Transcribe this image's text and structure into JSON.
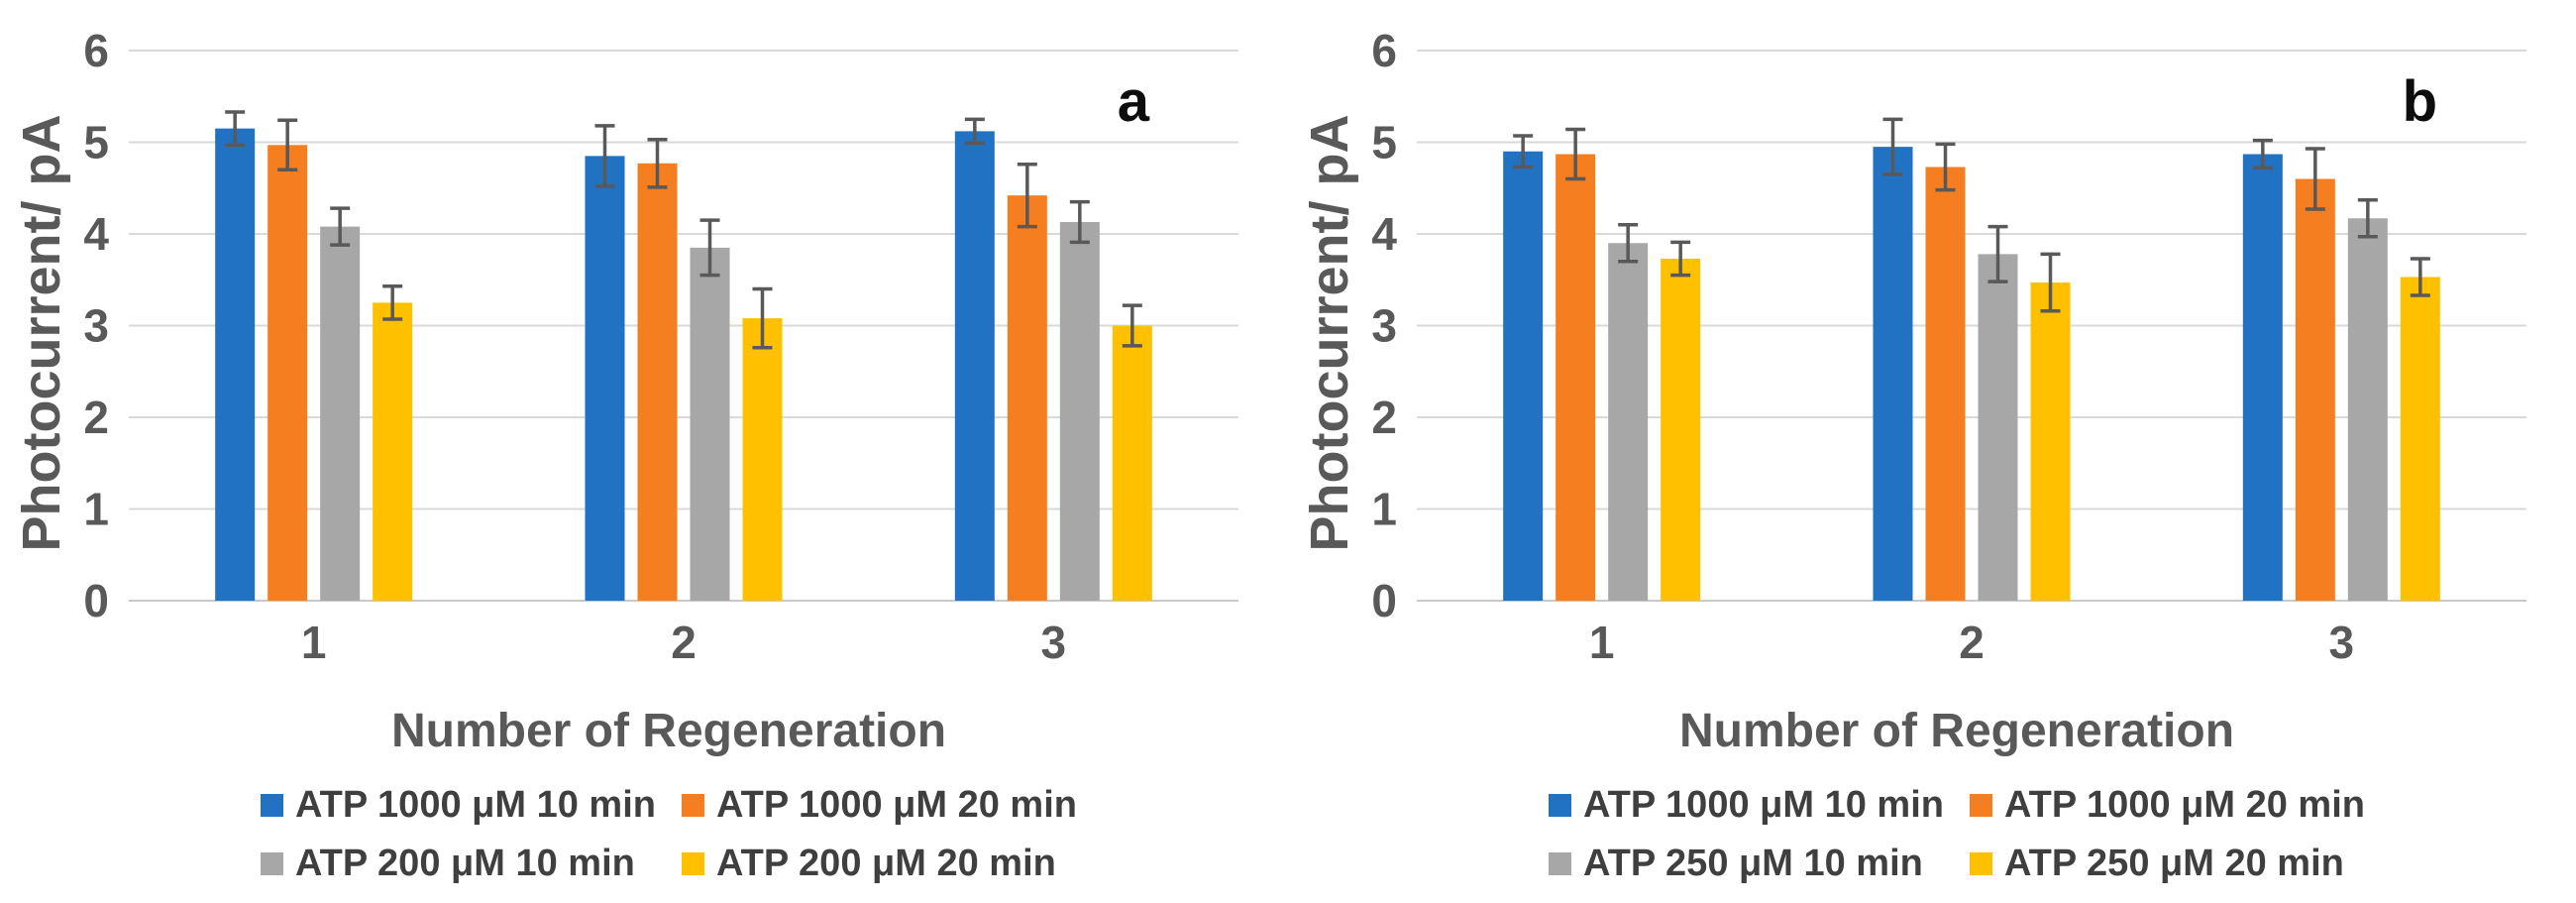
{
  "figure": {
    "ylabel": "Photocurrent/ pA",
    "xlabel": "Number of Regeneration"
  },
  "chart_data": [
    {
      "type": "bar",
      "panel_label": "a",
      "xlabel": "Number of Regeneration",
      "ylabel": "Photocurrent/ pA",
      "categories": [
        "1",
        "2",
        "3"
      ],
      "ylim": [
        0,
        6
      ],
      "yticks": [
        0,
        1,
        2,
        3,
        4,
        5,
        6
      ],
      "grid": true,
      "legend_position": "bottom",
      "error_bars": true,
      "series": [
        {
          "name": "ATP 1000 μM 10 min",
          "color": "#2272C3",
          "values": [
            5.15,
            4.85,
            5.12
          ],
          "errors": [
            0.18,
            0.33,
            0.13
          ]
        },
        {
          "name": "ATP 1000 μM 20 min",
          "color": "#F57E20",
          "values": [
            4.97,
            4.77,
            4.42
          ],
          "errors": [
            0.27,
            0.26,
            0.34
          ]
        },
        {
          "name": "ATP 200 μM 10 min",
          "color": "#A7A7A7",
          "values": [
            4.08,
            3.85,
            4.13
          ],
          "errors": [
            0.2,
            0.3,
            0.22
          ]
        },
        {
          "name": "ATP 200 μM 20 min",
          "color": "#FFC000",
          "values": [
            3.25,
            3.08,
            3.0
          ],
          "errors": [
            0.18,
            0.32,
            0.22
          ]
        }
      ]
    },
    {
      "type": "bar",
      "panel_label": "b",
      "xlabel": "Number of Regeneration",
      "ylabel": "Photocurrent/ pA",
      "categories": [
        "1",
        "2",
        "3"
      ],
      "ylim": [
        0,
        6
      ],
      "yticks": [
        0,
        1,
        2,
        3,
        4,
        5,
        6
      ],
      "grid": true,
      "legend_position": "bottom",
      "error_bars": true,
      "series": [
        {
          "name": "ATP 1000 μM 10 min",
          "color": "#2272C3",
          "values": [
            4.9,
            4.95,
            4.87
          ],
          "errors": [
            0.17,
            0.3,
            0.15
          ]
        },
        {
          "name": "ATP 1000 μM 20 min",
          "color": "#F57E20",
          "values": [
            4.87,
            4.73,
            4.6
          ],
          "errors": [
            0.27,
            0.25,
            0.33
          ]
        },
        {
          "name": "ATP 250 μM 10 min",
          "color": "#A7A7A7",
          "values": [
            3.9,
            3.78,
            4.17
          ],
          "errors": [
            0.2,
            0.3,
            0.2
          ]
        },
        {
          "name": "ATP 250 μM 20 min",
          "color": "#FFC000",
          "values": [
            3.73,
            3.47,
            3.53
          ],
          "errors": [
            0.18,
            0.31,
            0.2
          ]
        }
      ]
    }
  ],
  "style": {
    "grid_color": "#D9D9D9",
    "baseline_color": "#C9C9C9",
    "tick_text_color": "#595959",
    "legend_text_color": "#3f3f3f",
    "error_bar_color": "#595959"
  }
}
